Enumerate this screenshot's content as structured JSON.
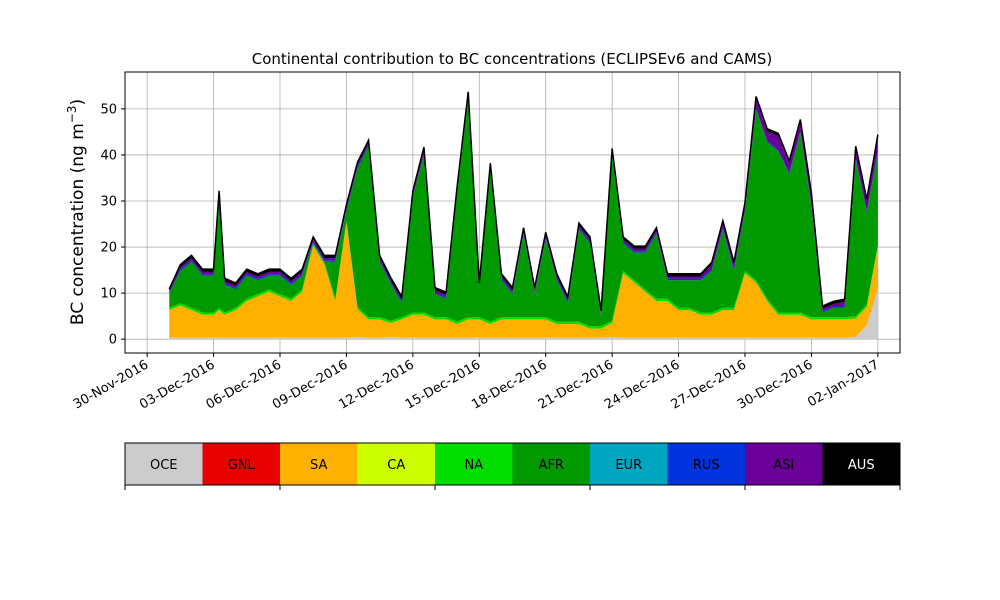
{
  "chart_data": {
    "type": "area",
    "stacked": true,
    "title": "Continental contribution to BC concentrations (ECLIPSEv6 and CAMS)",
    "ylabel": "BC concentration (ng m",
    "ylabel_unit_exponent": "−3",
    "ylabel_close": ")",
    "xlabel": "",
    "ylim": [
      -3,
      58
    ],
    "xlim": [
      "2016-11-29",
      "2017-01-03"
    ],
    "yticks": [
      0,
      10,
      20,
      30,
      40,
      50
    ],
    "xticks": [
      "2016-11-30",
      "2016-12-03",
      "2016-12-06",
      "2016-12-09",
      "2016-12-12",
      "2016-12-15",
      "2016-12-18",
      "2016-12-21",
      "2016-12-24",
      "2016-12-27",
      "2016-12-30",
      "2017-01-02"
    ],
    "xtick_labels": [
      "30-Nov-2016",
      "03-Dec-2016",
      "06-Dec-2016",
      "09-Dec-2016",
      "12-Dec-2016",
      "15-Dec-2016",
      "18-Dec-2016",
      "21-Dec-2016",
      "24-Dec-2016",
      "27-Dec-2016",
      "30-Dec-2016",
      "02-Jan-2017"
    ],
    "grid": true,
    "x": [
      "2016-12-01",
      "2016-12-01.5",
      "2016-12-02",
      "2016-12-02.5",
      "2016-12-03",
      "2016-12-03.25",
      "2016-12-03.5",
      "2016-12-04",
      "2016-12-04.5",
      "2016-12-05",
      "2016-12-05.5",
      "2016-12-06",
      "2016-12-06.5",
      "2016-12-07",
      "2016-12-07.5",
      "2016-12-08",
      "2016-12-08.5",
      "2016-12-09",
      "2016-12-09.5",
      "2016-12-10",
      "2016-12-10.5",
      "2016-12-11",
      "2016-12-11.5",
      "2016-12-12",
      "2016-12-12.5",
      "2016-12-13",
      "2016-12-13.5",
      "2016-12-14",
      "2016-12-14.5",
      "2016-12-15",
      "2016-12-15.5",
      "2016-12-16",
      "2016-12-16.5",
      "2016-12-17",
      "2016-12-17.5",
      "2016-12-18",
      "2016-12-18.5",
      "2016-12-19",
      "2016-12-19.5",
      "2016-12-20",
      "2016-12-20.5",
      "2016-12-21",
      "2016-12-21.5",
      "2016-12-22",
      "2016-12-22.5",
      "2016-12-23",
      "2016-12-23.5",
      "2016-12-24",
      "2016-12-24.5",
      "2016-12-25",
      "2016-12-25.5",
      "2016-12-26",
      "2016-12-26.5",
      "2016-12-27",
      "2016-12-27.5",
      "2016-12-28",
      "2016-12-28.5",
      "2016-12-29",
      "2016-12-29.5",
      "2016-12-30",
      "2016-12-30.5",
      "2016-12-31",
      "2016-12-31.5",
      "2017-01-01",
      "2017-01-01.5",
      "2017-01-02"
    ],
    "series": [
      {
        "name": "OCE",
        "color": "#cccccc",
        "values": [
          0.3,
          0.3,
          0.3,
          0.3,
          0.3,
          0.3,
          0.3,
          0.3,
          0.3,
          0.3,
          0.3,
          0.3,
          0.3,
          0.3,
          0.3,
          0.3,
          0.3,
          0.3,
          0.5,
          0.3,
          0.3,
          0.5,
          0.3,
          0.3,
          0.3,
          0.3,
          0.3,
          0.3,
          0.3,
          0.3,
          0.3,
          0.3,
          0.3,
          0.3,
          0.3,
          0.3,
          0.3,
          0.3,
          0.3,
          0.3,
          0.3,
          0.5,
          0.3,
          0.3,
          0.3,
          0.3,
          0.3,
          0.3,
          0.3,
          0.3,
          0.3,
          0.3,
          0.3,
          0.3,
          0.3,
          0.3,
          0.3,
          0.3,
          0.3,
          0.3,
          0.3,
          0.3,
          0.3,
          0.5,
          3,
          11
        ]
      },
      {
        "name": "SA",
        "color": "#ffb000",
        "values": [
          6,
          7,
          6,
          5,
          5,
          6,
          5,
          6,
          8,
          9,
          10,
          9,
          8,
          10,
          20,
          16,
          8,
          25,
          6,
          4,
          4,
          3,
          4,
          5,
          5,
          4,
          4,
          3,
          4,
          4,
          3,
          4,
          4,
          4,
          4,
          4,
          3,
          3,
          3,
          2,
          2,
          3,
          14,
          12,
          10,
          8,
          8,
          6,
          6,
          5,
          5,
          6,
          6,
          14,
          12,
          8,
          5,
          5,
          5,
          4,
          4,
          4,
          4,
          4,
          4,
          9
        ]
      },
      {
        "name": "NA",
        "color": "#00dd00",
        "values": [
          0.5,
          0.5,
          0.5,
          0.5,
          0.5,
          0.5,
          0.5,
          0.5,
          0.5,
          0.5,
          0.5,
          0.5,
          0.5,
          0.5,
          0.5,
          0.5,
          0.5,
          0.5,
          0.5,
          0.5,
          0.5,
          0.5,
          0.5,
          0.5,
          0.5,
          0.5,
          0.5,
          0.5,
          0.5,
          0.5,
          0.5,
          0.5,
          0.5,
          0.5,
          0.5,
          0.5,
          0.5,
          0.5,
          0.5,
          0.5,
          0.5,
          0.5,
          0.5,
          0.5,
          0.5,
          0.5,
          0.5,
          0.5,
          0.5,
          0.5,
          0.5,
          0.5,
          0.5,
          0.5,
          0.5,
          0.5,
          0.5,
          0.5,
          0.5,
          0.5,
          0.5,
          0.5,
          0.5,
          0.5,
          0.5,
          0.5
        ]
      },
      {
        "name": "AFR",
        "color": "#009900",
        "values": [
          3,
          7,
          10,
          8,
          8,
          24,
          6,
          4,
          5,
          3,
          3,
          4,
          3,
          3,
          0,
          0,
          8,
          2,
          30,
          37,
          12,
          8,
          3,
          25,
          34,
          5,
          4,
          28,
          47,
          6,
          33,
          8,
          5,
          18,
          5,
          17,
          9,
          4,
          20,
          18,
          2,
          36,
          6,
          6,
          8,
          14,
          4,
          6,
          6,
          7,
          9,
          17,
          8,
          13,
          37,
          34,
          35,
          30,
          39,
          24,
          1,
          2,
          2,
          34,
          20,
          20
        ]
      },
      {
        "name": "RUS",
        "color": "#0033dd",
        "values": [
          0.3,
          0.3,
          0.3,
          0.3,
          0.3,
          0.3,
          0.3,
          0.3,
          0.3,
          0.3,
          0.3,
          0.3,
          0.3,
          0.3,
          0.3,
          0.3,
          0.3,
          0.3,
          0.3,
          0.3,
          0.3,
          0.3,
          0.3,
          0.3,
          0.3,
          0.3,
          0.3,
          0.3,
          0.3,
          0.3,
          0.3,
          0.3,
          0.3,
          0.3,
          0.3,
          0.3,
          0.3,
          0.3,
          0.3,
          0.3,
          0.3,
          0.3,
          0.3,
          0.3,
          0.3,
          0.3,
          0.3,
          0.3,
          0.3,
          0.3,
          0.3,
          0.3,
          0.3,
          0.3,
          0.3,
          0.3,
          0.3,
          0.3,
          0.3,
          0.3,
          0.3,
          0.3,
          0.3,
          0.3,
          0.3,
          0.3
        ]
      },
      {
        "name": "ASI",
        "color": "#6a0099",
        "values": [
          0.3,
          0.5,
          0.5,
          0.5,
          0.5,
          0.5,
          0.5,
          0.5,
          0.5,
          0.5,
          0.5,
          0.5,
          0.5,
          0.5,
          0.5,
          0.5,
          0.5,
          0.5,
          0.5,
          0.5,
          0.5,
          0.5,
          0.5,
          0.5,
          1,
          0.5,
          0.5,
          0.5,
          1,
          0.5,
          0.5,
          0.5,
          0.5,
          0.5,
          0.5,
          0.5,
          0.5,
          0.5,
          0.5,
          0.5,
          0.5,
          0.5,
          0.5,
          0.5,
          0.5,
          0.5,
          0.5,
          0.5,
          0.5,
          0.5,
          1,
          1,
          1,
          1,
          2,
          2,
          3,
          2,
          2,
          2,
          0.5,
          0.5,
          1,
          2,
          2,
          3
        ]
      },
      {
        "name": "AUS",
        "color": "#000000",
        "values": [
          0.5,
          0.6,
          0.6,
          0.6,
          0.6,
          0.6,
          0.6,
          0.6,
          0.6,
          0.6,
          0.6,
          0.6,
          0.6,
          0.6,
          0.6,
          0.6,
          0.6,
          0.6,
          0.6,
          0.6,
          0.6,
          0.6,
          0.6,
          0.6,
          0.6,
          0.6,
          0.6,
          0.6,
          0.6,
          0.6,
          0.6,
          0.6,
          0.6,
          0.6,
          0.6,
          0.6,
          0.6,
          0.6,
          0.6,
          0.6,
          0.6,
          0.6,
          0.6,
          0.6,
          0.6,
          0.6,
          0.6,
          0.6,
          0.6,
          0.6,
          0.6,
          0.6,
          0.6,
          0.6,
          0.6,
          0.6,
          0.6,
          0.6,
          0.6,
          0.6,
          0.6,
          0.6,
          0.6,
          0.6,
          0.6,
          0.6
        ]
      }
    ],
    "legend_colorbar": [
      {
        "name": "OCE",
        "color": "#cccccc",
        "text_color": "#000000"
      },
      {
        "name": "GNL",
        "color": "#e60000",
        "text_color": "#000000"
      },
      {
        "name": "SA",
        "color": "#ffb000",
        "text_color": "#000000"
      },
      {
        "name": "CA",
        "color": "#ccff00",
        "text_color": "#000000"
      },
      {
        "name": "NA",
        "color": "#00dd00",
        "text_color": "#000000"
      },
      {
        "name": "AFR",
        "color": "#009900",
        "text_color": "#000000"
      },
      {
        "name": "EUR",
        "color": "#00a6bf",
        "text_color": "#000000"
      },
      {
        "name": "RUS",
        "color": "#0033dd",
        "text_color": "#000000"
      },
      {
        "name": "ASI",
        "color": "#6a0099",
        "text_color": "#000000"
      },
      {
        "name": "AUS",
        "color": "#000000",
        "text_color": "#ffffff"
      }
    ]
  }
}
